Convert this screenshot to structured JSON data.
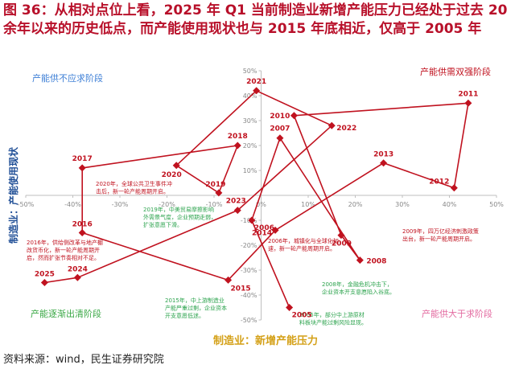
{
  "header": {
    "title": "图 36：从相对点位上看，2025 年 Q1 当前制造业新增产能压力已经处于过去 20 余年以来的历史低点，而产能使用现状也与 2015 年底相近，仅高于 2005 年"
  },
  "footer": {
    "source": "资料来源：wind，民生证券研究院"
  },
  "colors": {
    "series": "#c0121f",
    "axis": "#bfbfbf",
    "title": "#b8102a",
    "quadrant_label": "#3e7fd6",
    "quadrant_label_top_right": "#c0121f",
    "quadrant_label_bottom_left": "#3aa845",
    "quadrant_label_bottom_right": "#e36aa0",
    "ylabel": "#1f4e96",
    "xlabel": "#d4a017",
    "annotation_red": "#c0121f",
    "annotation_green": "#2ea44f"
  },
  "chart_data": {
    "type": "scatter",
    "connected": true,
    "xlabel": "制造业：新增产能压力",
    "ylabel": "制造业：产能使用现状",
    "xlim": [
      -50,
      50
    ],
    "ylim": [
      -50,
      50
    ],
    "xticks": [
      "-50%",
      "-40%",
      "-30%",
      "-20%",
      "-10%",
      "0%",
      "10%",
      "20%",
      "30%",
      "40%",
      "50%"
    ],
    "yticks": [
      "50%",
      "40%",
      "30%",
      "20%",
      "10%",
      "0%",
      "-10%",
      "-20%",
      "-30%",
      "-40%",
      "-50%"
    ],
    "grid": false,
    "points": [
      {
        "label": "2005",
        "x": 6,
        "y": -45
      },
      {
        "label": "2006",
        "x": -2,
        "y": -10
      },
      {
        "label": "2007",
        "x": 4,
        "y": 23
      },
      {
        "label": "2008",
        "x": 21,
        "y": -26
      },
      {
        "label": "2009",
        "x": 17,
        "y": -16
      },
      {
        "label": "2010",
        "x": 7,
        "y": 32
      },
      {
        "label": "2011",
        "x": 44,
        "y": 37
      },
      {
        "label": "2012",
        "x": 41,
        "y": 3
      },
      {
        "label": "2013",
        "x": 26,
        "y": 13
      },
      {
        "label": "2014",
        "x": 3,
        "y": -14
      },
      {
        "label": "2015",
        "x": -7,
        "y": -34
      },
      {
        "label": "2016",
        "x": -38,
        "y": -15
      },
      {
        "label": "2017",
        "x": -38,
        "y": 11
      },
      {
        "label": "2018",
        "x": -5,
        "y": 20
      },
      {
        "label": "2019",
        "x": -9,
        "y": 1
      },
      {
        "label": "2020",
        "x": -18,
        "y": 12
      },
      {
        "label": "2021",
        "x": -1,
        "y": 42
      },
      {
        "label": "2022",
        "x": 15,
        "y": 28
      },
      {
        "label": "2023",
        "x": -5,
        "y": -6
      },
      {
        "label": "2024",
        "x": -39,
        "y": -33
      },
      {
        "label": "2025",
        "x": -46,
        "y": -35
      }
    ],
    "quadrant_labels": [
      {
        "text": "产能供不应求阶段",
        "pos": "top-left"
      },
      {
        "text": "产能供需双强阶段",
        "pos": "top-right"
      },
      {
        "text": "产能逐渐出清阶段",
        "pos": "bottom-left"
      },
      {
        "text": "产能供大于求阶段",
        "pos": "bottom-right"
      }
    ],
    "annotations": [
      {
        "lines": [
          "2020年，全球公共卫生事件冲",
          "击后，新一轮产能周期开启。"
        ],
        "color": "red"
      },
      {
        "lines": [
          "2019年，中美贸易摩擦影响",
          "外需景气度，企业预期走弱，",
          "扩张意愿下滑。"
        ],
        "color": "green"
      },
      {
        "lines": [
          "2016年，供给侧改革与地产棚",
          "改货币化，新一轮产能周期开",
          "启，然而扩张节奏相对不足。"
        ],
        "color": "red"
      },
      {
        "lines": [
          "2015年，中上游制造业",
          "产能严重过剩，企业资本",
          "开支意愿低迷。"
        ],
        "color": "green"
      },
      {
        "lines": [
          "2006年，城镇化与全球化加",
          "速，新一轮产能周期开启。"
        ],
        "color": "red"
      },
      {
        "lines": [
          "2008年，金融危机冲击下，",
          "企业资本开支意愿陷入谷底。"
        ],
        "color": "green"
      },
      {
        "lines": [
          "2005年，部分中上游原材",
          "料板块产能过剩风险显现。"
        ],
        "color": "green"
      },
      {
        "lines": [
          "2009年，四万亿经济刺激政策",
          "出台，新一轮产能周期开启。"
        ],
        "color": "red"
      }
    ]
  }
}
